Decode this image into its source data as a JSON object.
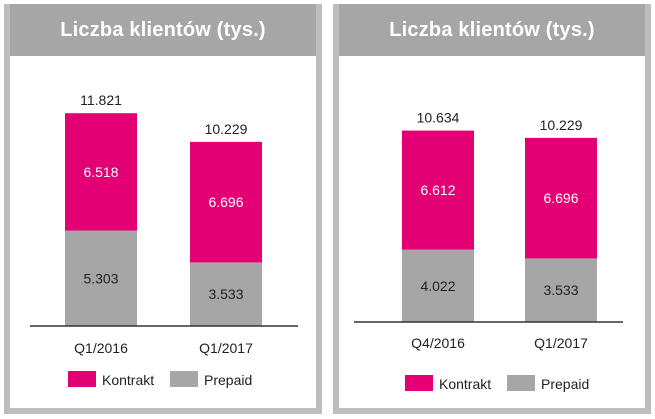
{
  "colors": {
    "kontrakt": "#e20074",
    "prepaid": "#a6a6a6",
    "header": "#a6a6a6"
  },
  "chart_data": [
    {
      "type": "bar",
      "stacked": true,
      "title": "Liczba klientów (tys.)",
      "categories": [
        "Q1/2016",
        "Q1/2017"
      ],
      "series": [
        {
          "name": "Prepaid",
          "values": [
            5.303,
            3.533
          ],
          "labels": [
            "5.303",
            "3.533"
          ]
        },
        {
          "name": "Kontrakt",
          "values": [
            6.518,
            6.696
          ],
          "labels": [
            "6.518",
            "6.696"
          ]
        }
      ],
      "totals": [
        "11.821",
        "10.229"
      ],
      "totals_values": [
        11.821,
        10.229
      ],
      "ylim": [
        0,
        13.5
      ],
      "legend": [
        "Kontrakt",
        "Prepaid"
      ],
      "legend_position": "bottom"
    },
    {
      "type": "bar",
      "stacked": true,
      "title": "Liczba klientów (tys.)",
      "categories": [
        "Q4/2016",
        "Q1/2017"
      ],
      "series": [
        {
          "name": "Prepaid",
          "values": [
            4.022,
            3.533
          ],
          "labels": [
            "4.022",
            "3.533"
          ]
        },
        {
          "name": "Kontrakt",
          "values": [
            6.612,
            6.696
          ],
          "labels": [
            "6.612",
            "6.696"
          ]
        }
      ],
      "totals": [
        "10.634",
        "10.229"
      ],
      "totals_values": [
        10.634,
        10.229
      ],
      "ylim": [
        0,
        13.5
      ],
      "legend": [
        "Kontrakt",
        "Prepaid"
      ],
      "legend_position": "bottom"
    }
  ]
}
